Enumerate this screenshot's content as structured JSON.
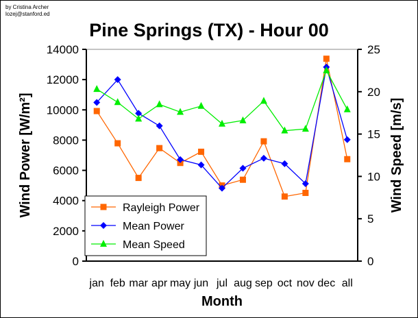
{
  "credit": {
    "author": "by Cristina Archer",
    "email": "lozej@stanford.ed"
  },
  "chart_data": {
    "type": "line",
    "title": "Pine Springs (TX) - Hour 00",
    "xlabel": "Month",
    "ylabel": "Wind Power [W/m²]",
    "y2label": "Wind Speed [m/s]",
    "categories": [
      "jan",
      "feb",
      "mar",
      "apr",
      "may",
      "jun",
      "jul",
      "aug",
      "sep",
      "oct",
      "nov",
      "dec",
      "all"
    ],
    "ylim": [
      0,
      14000
    ],
    "y2lim": [
      0,
      25
    ],
    "yticks": [
      "0",
      "2000",
      "4000",
      "6000",
      "8000",
      "10000",
      "12000",
      "14000"
    ],
    "y2ticks": [
      "0",
      "5",
      "10",
      "15",
      "20",
      "25"
    ],
    "legend_position": "bottom-left",
    "series": [
      {
        "name": "Rayleigh Power",
        "axis": "left",
        "color": "#ff6600",
        "marker": "square",
        "values": [
          9920,
          7790,
          5500,
          7470,
          6490,
          7230,
          5000,
          5380,
          7920,
          4270,
          4510,
          13380,
          6740
        ]
      },
      {
        "name": "Mean Power",
        "axis": "left",
        "color": "#0000ff",
        "marker": "diamond",
        "values": [
          10490,
          12000,
          9770,
          8940,
          6710,
          6360,
          4820,
          6140,
          6800,
          6440,
          5120,
          12830,
          8030
        ]
      },
      {
        "name": "Mean Speed",
        "axis": "right",
        "color": "#00ee00",
        "marker": "triangle",
        "values": [
          20.3,
          18.75,
          16.8,
          18.5,
          17.6,
          18.3,
          16.2,
          16.6,
          18.9,
          15.4,
          15.6,
          22.5,
          17.9
        ]
      }
    ]
  }
}
